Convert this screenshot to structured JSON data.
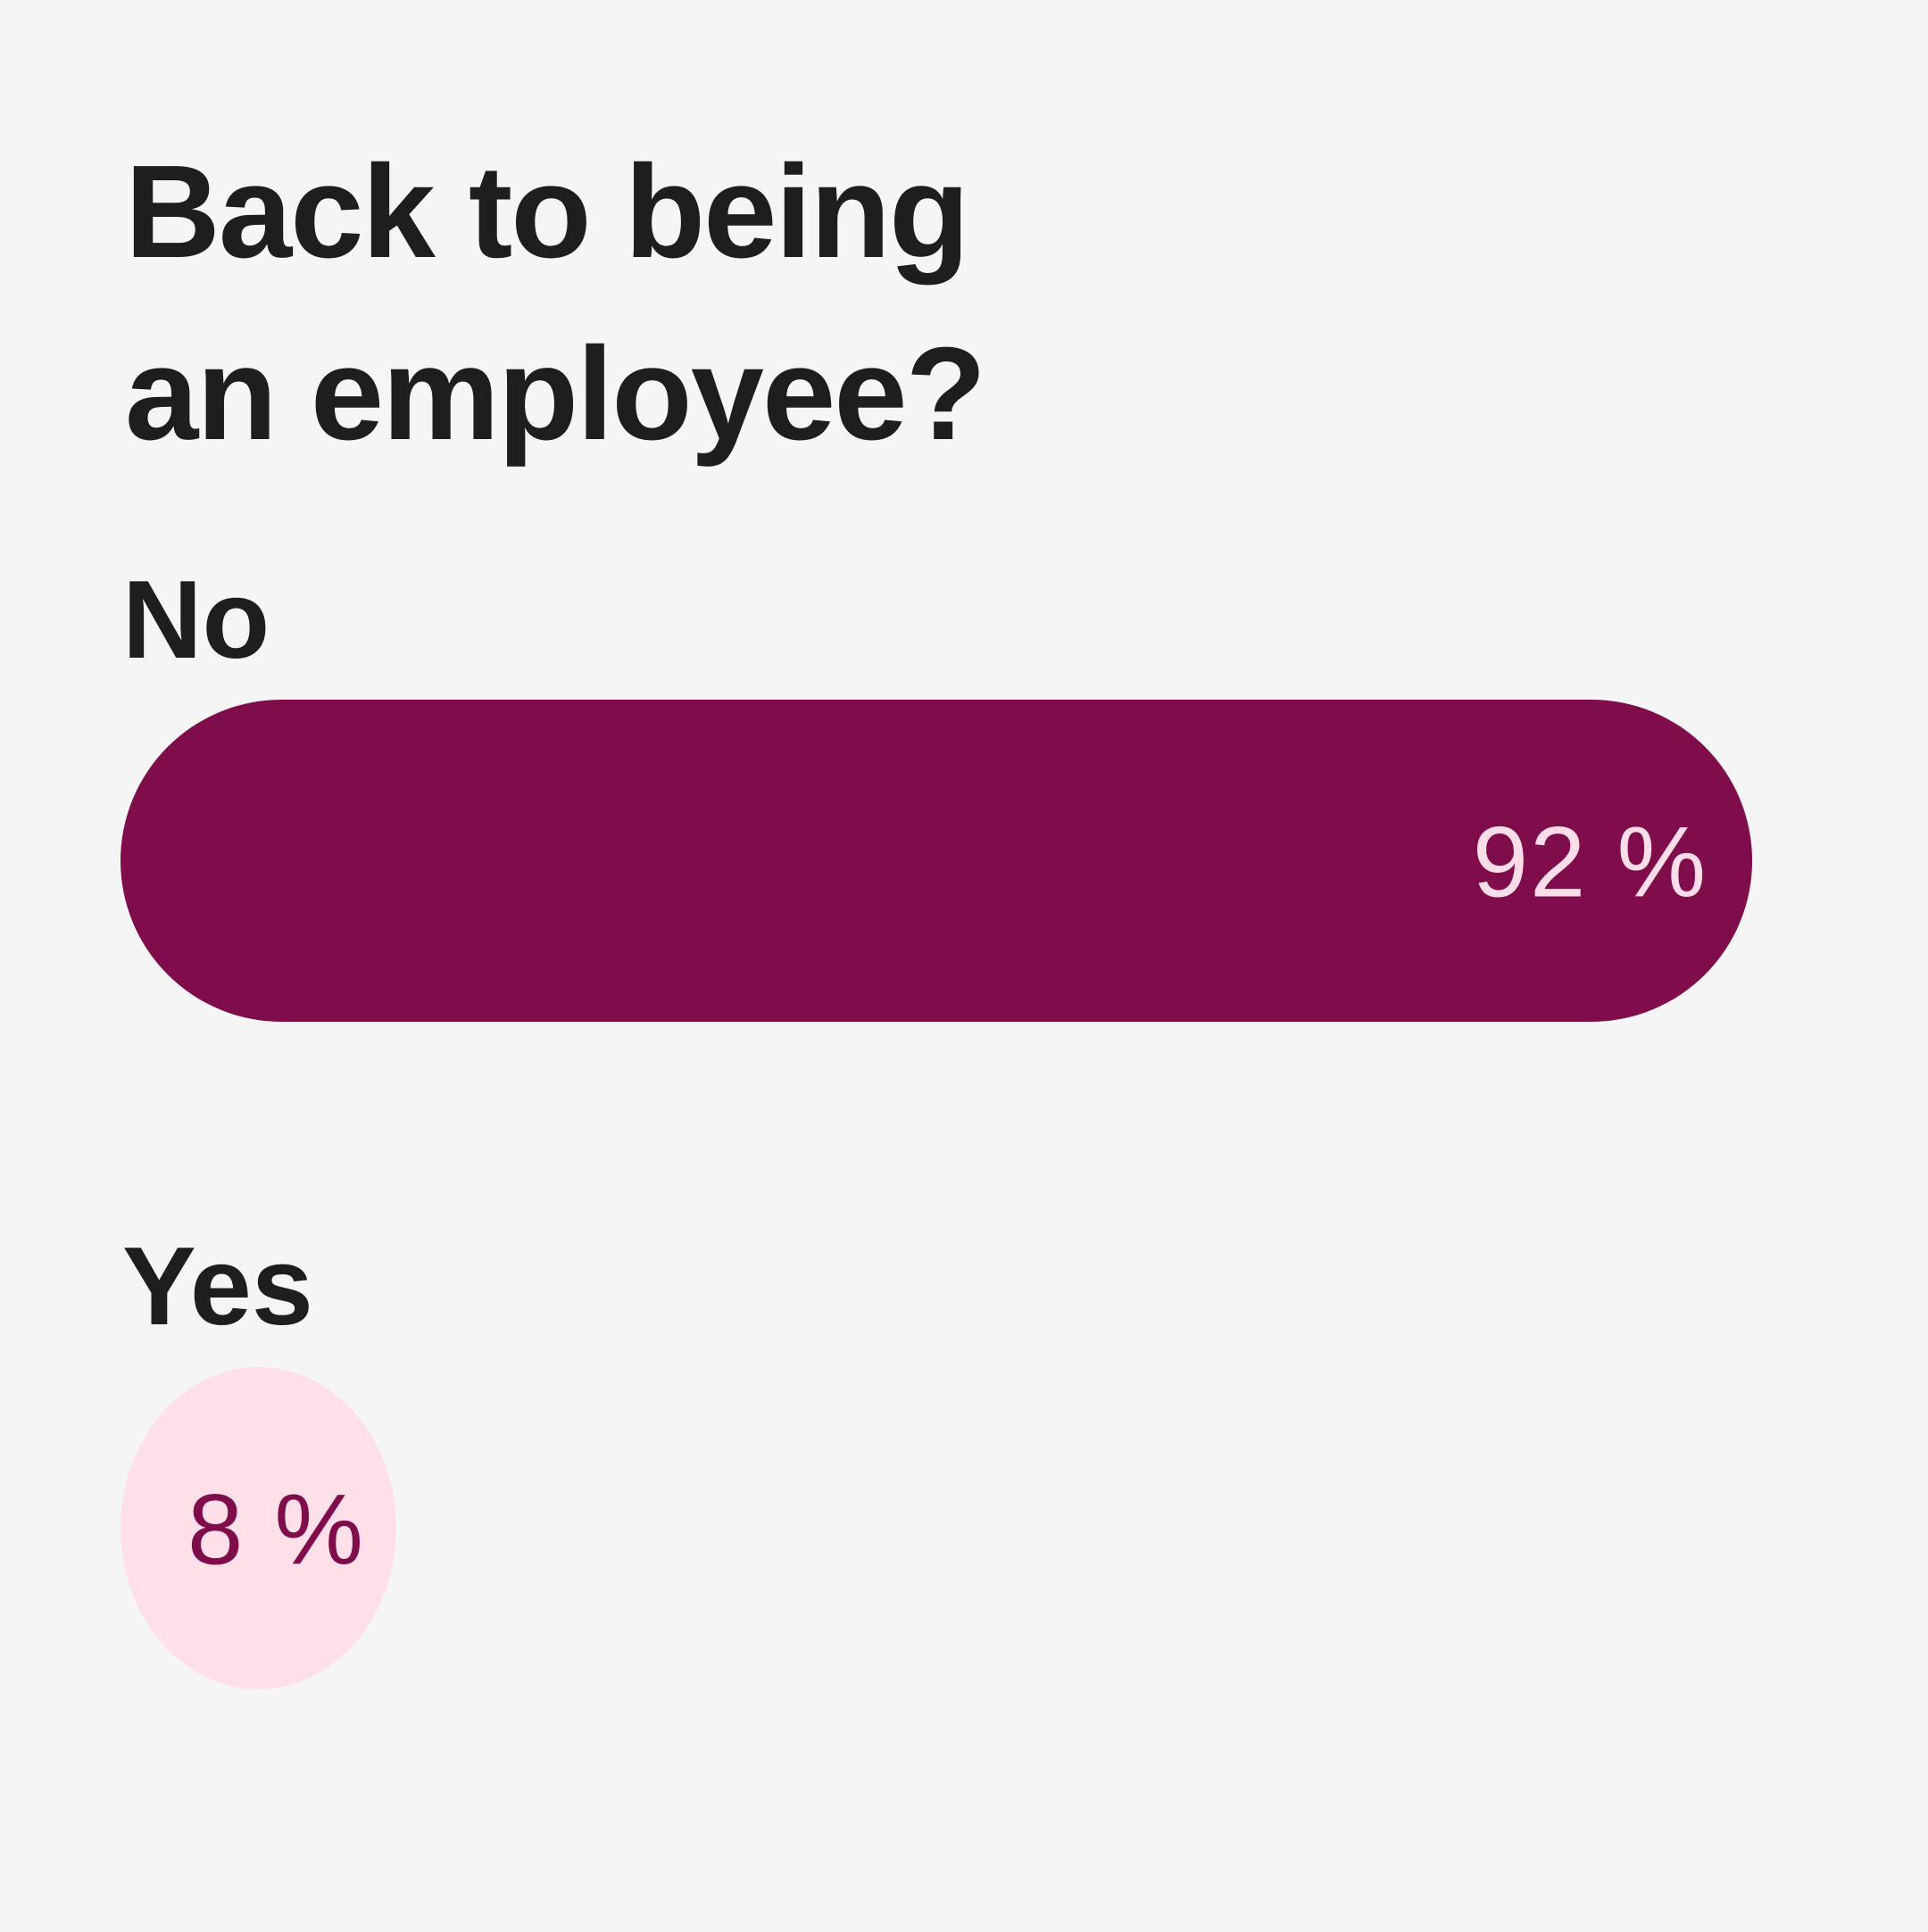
{
  "chart_data": {
    "type": "bar",
    "orientation": "horizontal",
    "title": [
      "Back to being",
      "an employee?"
    ],
    "categories": [
      "No",
      "Yes"
    ],
    "values": [
      92,
      8
    ],
    "value_labels": [
      "92 %",
      "8 %"
    ],
    "colors": [
      "#7f0d4b",
      "#ffdfe8"
    ],
    "label_colors": [
      "#fadde6",
      "#7f0d4b"
    ],
    "xlim": [
      0,
      100
    ]
  }
}
